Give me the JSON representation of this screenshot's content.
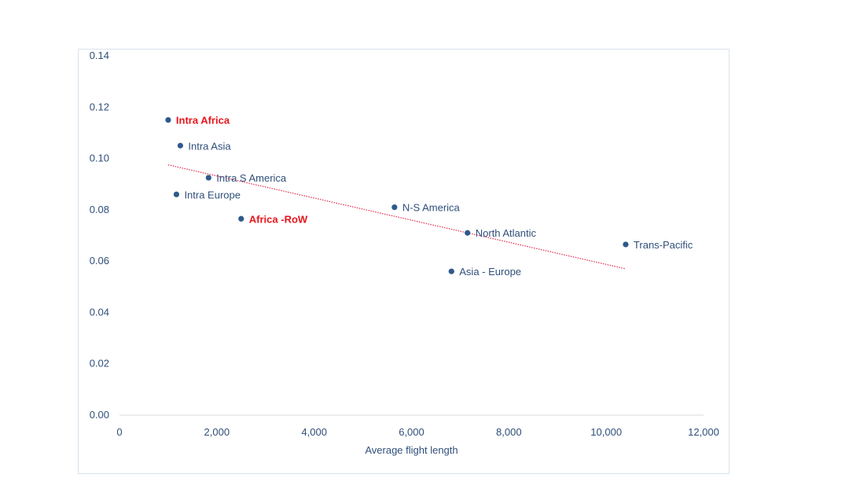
{
  "chart_data": {
    "type": "scatter",
    "title": "",
    "xlabel": "Average flight length",
    "ylabel": "",
    "xlim": [
      0,
      12000
    ],
    "ylim": [
      0,
      0.14
    ],
    "x_ticks": [
      0,
      2000,
      4000,
      6000,
      8000,
      10000,
      12000
    ],
    "x_tick_labels": [
      "0",
      "2,000",
      "4,000",
      "6,000",
      "8,000",
      "10,000",
      "12,000"
    ],
    "y_ticks": [
      0,
      0.02,
      0.04,
      0.06,
      0.08,
      0.1,
      0.12,
      0.14
    ],
    "y_tick_labels": [
      "0.00",
      "0.02",
      "0.04",
      "0.06",
      "0.08",
      "0.10",
      "0.12",
      "0.14"
    ],
    "grid": false,
    "legend": "none",
    "points": [
      {
        "label": "Intra Africa",
        "x": 1000,
        "y": 0.115,
        "highlight": true
      },
      {
        "label": "Intra Asia",
        "x": 1250,
        "y": 0.105,
        "highlight": false
      },
      {
        "label": "Intra S America",
        "x": 1830,
        "y": 0.0925,
        "highlight": false
      },
      {
        "label": "Intra Europe",
        "x": 1170,
        "y": 0.086,
        "highlight": false
      },
      {
        "label": "Africa -RoW",
        "x": 2500,
        "y": 0.0765,
        "highlight": true
      },
      {
        "label": "N-S America",
        "x": 5650,
        "y": 0.081,
        "highlight": false
      },
      {
        "label": "North Atlantic",
        "x": 7150,
        "y": 0.071,
        "highlight": false
      },
      {
        "label": "Asia - Europe",
        "x": 6820,
        "y": 0.056,
        "highlight": false
      },
      {
        "label": "Trans-Pacific",
        "x": 10400,
        "y": 0.0665,
        "highlight": false
      }
    ],
    "trendline": {
      "type": "linear",
      "x_start": 1000,
      "y_start": 0.0975,
      "x_end": 10400,
      "y_end": 0.057
    },
    "colors": {
      "marker": "#2e5a8c",
      "text": "#2f4f7a",
      "highlight_text": "#e8141b",
      "trendline": "#e0284a",
      "frame": "#d9e2ec"
    }
  }
}
